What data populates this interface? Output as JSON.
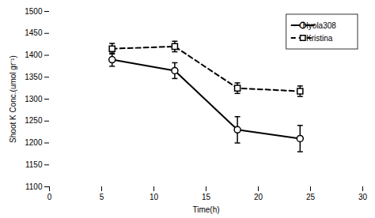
{
  "chart_data": {
    "type": "line",
    "x": [
      6,
      12,
      18,
      24
    ],
    "series": [
      {
        "name": "Hyola308",
        "color": "black",
        "marker": "circle",
        "line_style": "solid",
        "values": [
          1390,
          1365,
          1230,
          1210
        ],
        "errors": [
          15,
          18,
          30,
          30
        ]
      },
      {
        "name": "Kristina",
        "color": "black",
        "marker": "square",
        "line_style": "dashed",
        "values": [
          1415,
          1420,
          1325,
          1318
        ],
        "errors": [
          12,
          12,
          12,
          12
        ]
      }
    ],
    "xlabel": "Time(h)",
    "ylabel": "Shoot K Conc.(umol gr⁻¹)",
    "xlim": [
      0,
      30
    ],
    "ylim": [
      1100,
      1500
    ],
    "xticks": [
      0,
      5,
      10,
      15,
      20,
      25,
      30
    ],
    "yticks": [
      1100,
      1150,
      1200,
      1250,
      1300,
      1350,
      1400,
      1450,
      1500
    ],
    "legend": "upper right",
    "grid": false
  }
}
